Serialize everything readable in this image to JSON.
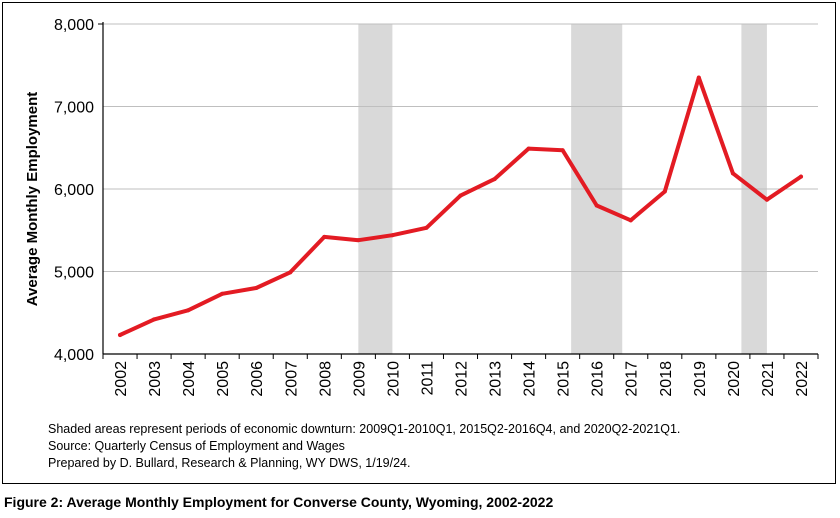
{
  "chart_data": {
    "type": "line",
    "title": "",
    "xlabel": "",
    "ylabel": "Average Monthly Employment",
    "ylim": [
      4000,
      8000
    ],
    "yticks": [
      "4,000",
      "5,000",
      "6,000",
      "7,000",
      "8,000"
    ],
    "ytick_values": [
      4000,
      5000,
      6000,
      7000,
      8000
    ],
    "categories": [
      "2002",
      "2003",
      "2004",
      "2005",
      "2006",
      "2007",
      "2008",
      "2009",
      "2010",
      "2011",
      "2012",
      "2013",
      "2014",
      "2015",
      "2016",
      "2017",
      "2018",
      "2019",
      "2020",
      "2021",
      "2022"
    ],
    "x": [
      2002,
      2003,
      2004,
      2005,
      2006,
      2007,
      2008,
      2009,
      2010,
      2011,
      2012,
      2013,
      2014,
      2015,
      2016,
      2017,
      2018,
      2019,
      2020,
      2021,
      2022
    ],
    "series": [
      {
        "values": [
          4230,
          4420,
          4530,
          4730,
          4800,
          4990,
          5420,
          5380,
          5440,
          5530,
          5920,
          6120,
          6490,
          6470,
          5800,
          5620,
          5970,
          7350,
          6190,
          5870,
          6150
        ]
      }
    ],
    "shaded_periods": [
      {
        "label": "2009Q1-2010Q1",
        "start": 2009.0,
        "end": 2010.0
      },
      {
        "label": "2015Q2-2016Q4",
        "start": 2015.25,
        "end": 2016.75
      },
      {
        "label": "2020Q2-2021Q1",
        "start": 2020.25,
        "end": 2021.0
      }
    ],
    "grid": "horizontal",
    "legend": "none",
    "colors": {
      "line": "#e31b23",
      "shade": "#d9d9d9",
      "grid": "#bfbfbf",
      "axis": "#000000"
    }
  },
  "notes": {
    "shaded": "Shaded areas represent periods of economic downturn: 2009Q1-2010Q1, 2015Q2-2016Q4, and 2020Q2-2021Q1.",
    "source": "Source: Quarterly Census of Employment and Wages",
    "prepared": "Prepared by D. Bullard, Research & Planning, WY DWS, 1/19/24."
  },
  "caption": "Figure 2: Average Monthly Employment for Converse County, Wyoming, 2002-2022"
}
